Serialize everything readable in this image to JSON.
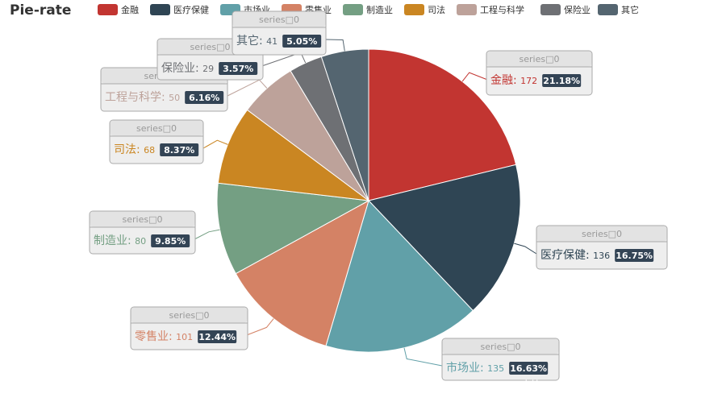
{
  "chart_data": {
    "type": "pie",
    "title": "Pie-rate",
    "series_label": "series□0",
    "categories": [
      "金融",
      "医疗保健",
      "市场业",
      "零售业",
      "制造业",
      "司法",
      "工程与科学",
      "保险业",
      "其它"
    ],
    "values": [
      172,
      136,
      135,
      101,
      80,
      68,
      50,
      29,
      41
    ],
    "percents": [
      "21.18%",
      "16.75%",
      "16.63%",
      "12.44%",
      "9.85%",
      "8.37%",
      "6.16%",
      "3.57%",
      "5.05%"
    ],
    "colors": [
      "#c23531",
      "#2f4554",
      "#61a0a8",
      "#d48265",
      "#749f83",
      "#ca8622",
      "#bda29a",
      "#6e7074",
      "#546570"
    ],
    "legend_position": "top"
  },
  "watermark": "https://blog.csdn.net/qq_924485343"
}
